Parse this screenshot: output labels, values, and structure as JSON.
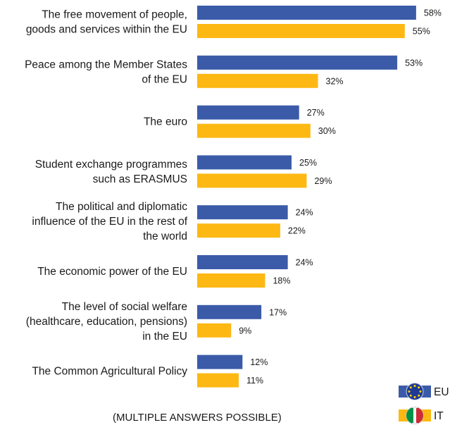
{
  "chart_data": {
    "type": "bar",
    "orientation": "horizontal",
    "categories": [
      [
        "The free movement of people,",
        "goods and services within the EU"
      ],
      [
        "Peace among the Member States",
        "of the EU"
      ],
      [
        "The euro"
      ],
      [
        "Student exchange programmes",
        "such as ERASMUS"
      ],
      [
        "The political and diplomatic",
        "influence of the EU in the rest of",
        "the world"
      ],
      [
        "The economic power of the EU"
      ],
      [
        "The level of social welfare",
        "(healthcare, education, pensions)",
        "in the EU"
      ],
      [
        "The Common Agricultural Policy"
      ]
    ],
    "series": [
      {
        "name": "EU",
        "color": "#3B5BA9",
        "values": [
          58,
          53,
          27,
          25,
          24,
          24,
          17,
          12
        ]
      },
      {
        "name": "IT",
        "color": "#FDB813",
        "values": [
          55,
          32,
          30,
          29,
          22,
          18,
          9,
          11
        ]
      }
    ],
    "value_suffix": "%",
    "xlim": [
      0,
      60
    ],
    "grid": false,
    "legend_position": "bottom-right",
    "legend_icons": [
      "eu-flag-icon",
      "italy-flag-icon"
    ],
    "footnote": "(MULTIPLE ANSWERS POSSIBLE)"
  }
}
